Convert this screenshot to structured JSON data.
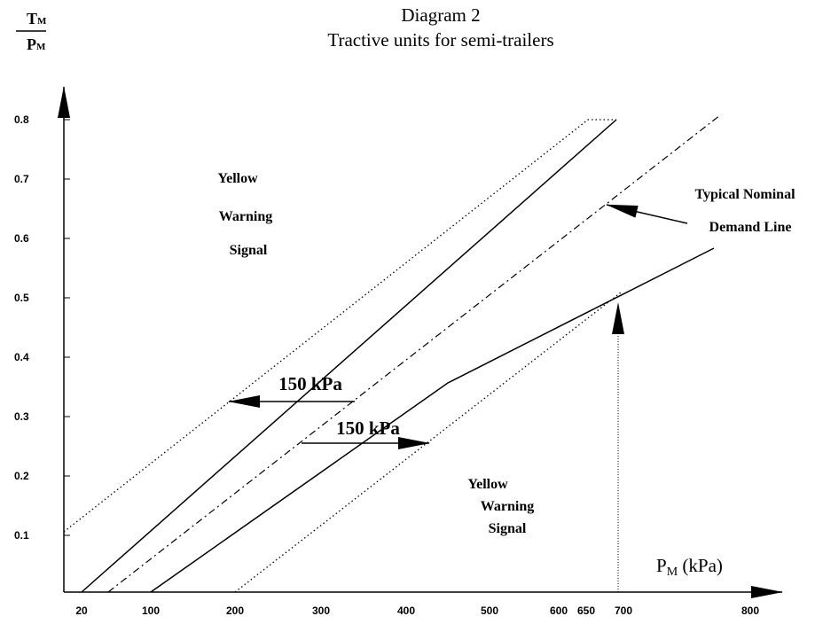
{
  "title": "Diagram 2",
  "subtitle": "Tractive units for semi-trailers",
  "y_axis_label": {
    "numerator": {
      "symbol": "T",
      "subscript": "M"
    },
    "denominator": {
      "symbol": "P",
      "subscript": "M"
    }
  },
  "x_axis_label": {
    "symbol": "P",
    "subscript": "M",
    "unit": "(kPa)"
  },
  "yticks": [
    "0.1",
    "0.2",
    "0.3",
    "0.4",
    "0.5",
    "0.6",
    "0.7",
    "0.8"
  ],
  "xticks": [
    "20",
    "100",
    "200",
    "300",
    "400",
    "500",
    "600",
    "650",
    "700",
    "800"
  ],
  "annotations": {
    "upper_region": [
      "Yellow",
      "Warning",
      "Signal"
    ],
    "lower_region": [
      "Yellow",
      "Warning",
      "Signal"
    ],
    "demand_line": [
      "Typical Nominal",
      "Demand Line"
    ],
    "upper_offset": "150 kPa",
    "lower_offset": "150 kPa"
  }
}
